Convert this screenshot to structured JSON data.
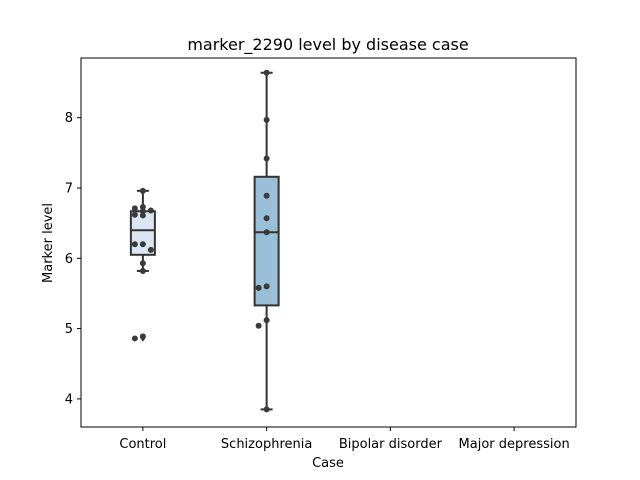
{
  "chart_data": {
    "type": "box",
    "title": "marker_2290 level by disease case",
    "xlabel": "Case",
    "ylabel": "Marker level",
    "categories": [
      "Control",
      "Schizophrenia",
      "Bipolar disorder",
      "Major depression"
    ],
    "ylim": [
      3.6,
      8.85
    ],
    "yticks": [
      4,
      5,
      6,
      7,
      8
    ],
    "grid": false,
    "colors": {
      "box_fills": [
        "#dce6f2",
        "#99c0d8"
      ],
      "outline": "#333333",
      "points": "#3a3a3a"
    },
    "boxes": [
      {
        "category": "Control",
        "q1": 6.05,
        "median": 6.4,
        "q3": 6.67,
        "whisker_low": 5.82,
        "whisker_high": 6.96,
        "outliers": [
          4.87
        ]
      },
      {
        "category": "Schizophrenia",
        "q1": 5.33,
        "median": 6.37,
        "q3": 7.16,
        "whisker_low": 3.85,
        "whisker_high": 8.64,
        "outliers": []
      }
    ],
    "points": [
      {
        "category": "Control",
        "values": [
          6.96,
          6.73,
          6.71,
          6.68,
          6.67,
          6.62,
          6.61,
          6.2,
          6.2,
          6.12,
          5.93,
          5.82,
          4.89,
          4.86
        ]
      },
      {
        "category": "Schizophrenia",
        "values": [
          8.64,
          7.97,
          7.42,
          6.89,
          6.57,
          6.37,
          5.6,
          5.58,
          5.12,
          5.04,
          3.85
        ]
      }
    ]
  }
}
